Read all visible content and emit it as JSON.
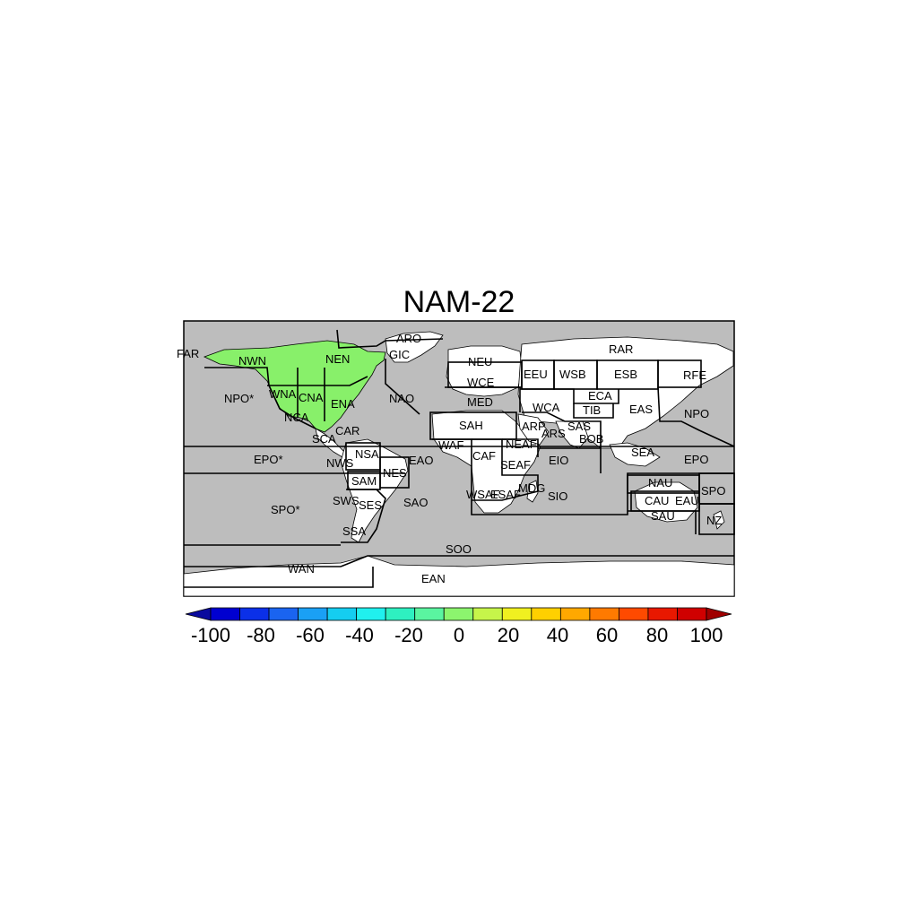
{
  "title": "NAM-22",
  "colors": {
    "ocean": "#bdbdbd",
    "land": "#ffffff",
    "highlight": "#88f06a",
    "border": "#000000"
  },
  "regions": [
    "FAR",
    "NWN",
    "NEN",
    "ARO",
    "GIC",
    "NPO*",
    "WNA",
    "CNA",
    "ENA",
    "NCA",
    "NAO",
    "SCA",
    "CAR",
    "NSA",
    "EPO*",
    "NWS",
    "SAM",
    "NES",
    "EAO",
    "SWS",
    "SES",
    "SAO",
    "SPO*",
    "SSA",
    "WAN",
    "SOO",
    "EAN",
    "NEU",
    "WCE",
    "MED",
    "SAH",
    "WAF",
    "CAF",
    "NEAF",
    "SEAF",
    "WSAF",
    "ESAF",
    "MDG",
    "EEU",
    "WSB",
    "ESB",
    "RAR",
    "RFE",
    "WCA",
    "ECA",
    "TIB",
    "EAS",
    "ARP",
    "SAS",
    "ARS",
    "BOB",
    "EIO",
    "SIO",
    "SEA",
    "NAU",
    "CAU",
    "EAU",
    "SAU",
    "NZ",
    "SPO",
    "EPO",
    "NPO"
  ],
  "highlighted_regions": [
    "NWN",
    "NEN",
    "WNA",
    "CNA",
    "ENA",
    "NCA",
    "GIC"
  ],
  "colorbar": {
    "ticks": [
      "-100",
      "-80",
      "-60",
      "-40",
      "-20",
      "0",
      "20",
      "40",
      "60",
      "80",
      "100"
    ],
    "colors": [
      "#0a0a9e",
      "#0000d0",
      "#0b30e8",
      "#1a64f0",
      "#1aa0f5",
      "#15cdf0",
      "#20f0ee",
      "#2ef0c0",
      "#5af5a0",
      "#8cf56e",
      "#c6f54a",
      "#f0f020",
      "#ffd000",
      "#ffa800",
      "#ff7a00",
      "#ff4a00",
      "#e81800",
      "#d00000",
      "#a00000"
    ]
  }
}
